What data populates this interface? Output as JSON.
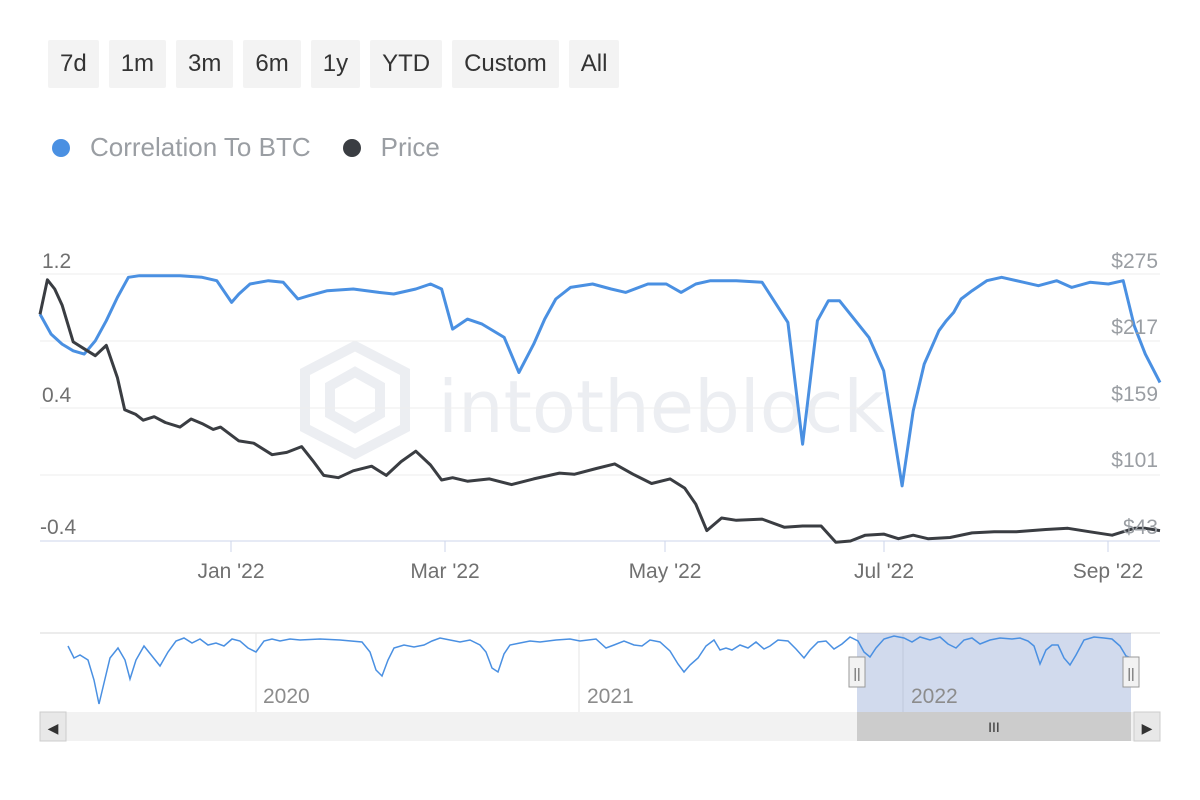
{
  "range_buttons": [
    "7d",
    "1m",
    "3m",
    "6m",
    "1y",
    "YTD",
    "Custom",
    "All"
  ],
  "legend": [
    {
      "label": "Correlation To BTC",
      "color": "#4a90e2"
    },
    {
      "label": "Price",
      "color": "#3a3d42"
    }
  ],
  "watermark": "intotheblock",
  "navigator": {
    "years": [
      "2020",
      "2021",
      "2022"
    ],
    "scroll_grip": "III",
    "left_arrow": "◀",
    "right_arrow": "▶",
    "handle_grip": "||"
  },
  "chart_data": {
    "type": "line",
    "title": "",
    "x_ticks": [
      "Jan '22",
      "Mar '22",
      "May '22",
      "Jul '22",
      "Sep '22"
    ],
    "x_tick_dates": [
      "2022-01-01",
      "2022-03-01",
      "2022-05-01",
      "2022-07-01",
      "2022-09-01"
    ],
    "x_range": [
      "2021-11-10",
      "2022-09-10"
    ],
    "y_left": {
      "ticks": [
        "1.2",
        "0.4",
        "-0.4"
      ],
      "ylim": [
        -0.4,
        1.2
      ]
    },
    "y_right": {
      "ticks": [
        "$275",
        "$217",
        "$159",
        "$101",
        "$43"
      ],
      "ylim": [
        43,
        275
      ]
    },
    "grid": true,
    "legend_position": "top-left",
    "series": [
      {
        "name": "Correlation To BTC",
        "axis": "left",
        "color": "#4a90e2",
        "x": [
          "2021-11-10",
          "2021-11-13",
          "2021-11-16",
          "2021-11-19",
          "2021-11-22",
          "2021-11-25",
          "2021-11-28",
          "2021-12-01",
          "2021-12-04",
          "2021-12-07",
          "2021-12-12",
          "2021-12-18",
          "2021-12-24",
          "2021-12-28",
          "2022-01-01",
          "2022-01-03",
          "2022-01-06",
          "2022-01-11",
          "2022-01-15",
          "2022-01-19",
          "2022-01-22",
          "2022-01-27",
          "2022-02-03",
          "2022-02-10",
          "2022-02-14",
          "2022-02-20",
          "2022-02-24",
          "2022-02-27",
          "2022-03-02",
          "2022-03-06",
          "2022-03-10",
          "2022-03-16",
          "2022-03-20",
          "2022-03-24",
          "2022-03-27",
          "2022-03-30",
          "2022-04-03",
          "2022-04-09",
          "2022-04-14",
          "2022-04-18",
          "2022-04-24",
          "2022-04-29",
          "2022-05-03",
          "2022-05-07",
          "2022-05-11",
          "2022-05-18",
          "2022-05-25",
          "2022-06-01",
          "2022-06-05",
          "2022-06-09",
          "2022-06-12",
          "2022-06-15",
          "2022-06-19",
          "2022-06-23",
          "2022-06-27",
          "2022-07-02",
          "2022-07-05",
          "2022-07-08",
          "2022-07-10",
          "2022-07-12",
          "2022-07-14",
          "2022-07-16",
          "2022-07-18",
          "2022-07-21",
          "2022-07-25",
          "2022-07-29",
          "2022-08-04",
          "2022-08-08",
          "2022-08-13",
          "2022-08-17",
          "2022-08-22",
          "2022-08-27",
          "2022-08-31",
          "2022-09-03",
          "2022-09-06",
          "2022-09-10"
        ],
        "y": [
          0.96,
          0.84,
          0.78,
          0.74,
          0.72,
          0.8,
          0.92,
          1.06,
          1.18,
          1.19,
          1.19,
          1.19,
          1.18,
          1.16,
          1.03,
          1.08,
          1.14,
          1.16,
          1.15,
          1.05,
          1.07,
          1.1,
          1.11,
          1.09,
          1.08,
          1.11,
          1.14,
          1.11,
          0.87,
          0.93,
          0.9,
          0.82,
          0.61,
          0.78,
          0.93,
          1.05,
          1.12,
          1.14,
          1.11,
          1.09,
          1.14,
          1.14,
          1.09,
          1.14,
          1.16,
          1.16,
          1.15,
          0.91,
          0.18,
          0.92,
          1.04,
          1.04,
          0.93,
          0.82,
          0.62,
          -0.07,
          0.38,
          0.66,
          0.76,
          0.86,
          0.92,
          0.97,
          1.05,
          1.1,
          1.16,
          1.18,
          1.15,
          1.13,
          1.16,
          1.12,
          1.15,
          1.14,
          1.16,
          0.89,
          0.72,
          0.55
        ]
      },
      {
        "name": "Price",
        "axis": "right",
        "color": "#3a3d42",
        "x": [
          "2021-11-10",
          "2021-11-12",
          "2021-11-14",
          "2021-11-16",
          "2021-11-19",
          "2021-11-22",
          "2021-11-25",
          "2021-11-28",
          "2021-12-01",
          "2021-12-03",
          "2021-12-06",
          "2021-12-08",
          "2021-12-11",
          "2021-12-14",
          "2021-12-18",
          "2021-12-21",
          "2021-12-24",
          "2021-12-27",
          "2021-12-29",
          "2022-01-03",
          "2022-01-07",
          "2022-01-12",
          "2022-01-16",
          "2022-01-20",
          "2022-01-23",
          "2022-01-26",
          "2022-01-30",
          "2022-02-03",
          "2022-02-08",
          "2022-02-12",
          "2022-02-16",
          "2022-02-20",
          "2022-02-24",
          "2022-02-27",
          "2022-03-02",
          "2022-03-06",
          "2022-03-12",
          "2022-03-18",
          "2022-03-24",
          "2022-03-31",
          "2022-04-04",
          "2022-04-10",
          "2022-04-15",
          "2022-04-20",
          "2022-04-25",
          "2022-04-30",
          "2022-05-04",
          "2022-05-07",
          "2022-05-10",
          "2022-05-14",
          "2022-05-18",
          "2022-05-25",
          "2022-05-31",
          "2022-06-05",
          "2022-06-10",
          "2022-06-14",
          "2022-06-18",
          "2022-06-22",
          "2022-06-27",
          "2022-07-01",
          "2022-07-05",
          "2022-07-09",
          "2022-07-15",
          "2022-07-21",
          "2022-07-27",
          "2022-08-02",
          "2022-08-10",
          "2022-08-16",
          "2022-08-22",
          "2022-08-28",
          "2022-09-03",
          "2022-09-06",
          "2022-09-10"
        ],
        "y": [
          240,
          270,
          262,
          248,
          216,
          210,
          204,
          213,
          185,
          157,
          153,
          148,
          151,
          146,
          142,
          149,
          145,
          140,
          142,
          130,
          128,
          118,
          120,
          125,
          113,
          100,
          98,
          104,
          108,
          100,
          112,
          121,
          109,
          96,
          98,
          95,
          97,
          92,
          97,
          102,
          101,
          106,
          110,
          101,
          93,
          97,
          89,
          75,
          52,
          63,
          61,
          62,
          55,
          56,
          56,
          42,
          43,
          48,
          49,
          45,
          48,
          45,
          46,
          50,
          51,
          51,
          53,
          54,
          51,
          48,
          54,
          54,
          52
        ]
      }
    ]
  }
}
